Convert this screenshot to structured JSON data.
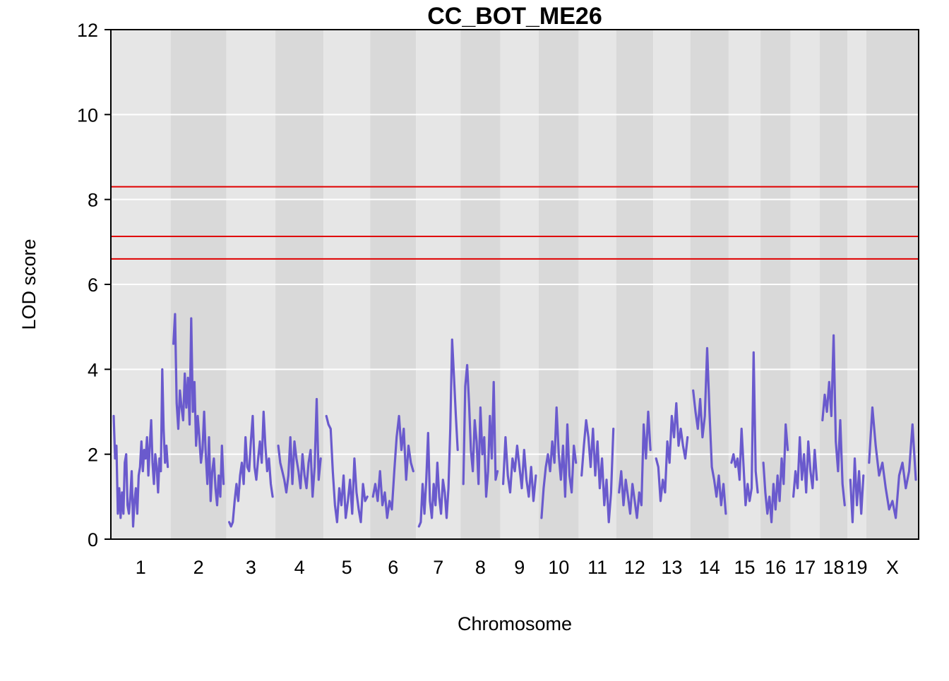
{
  "chart_data": {
    "type": "line",
    "title": "CC_BOT_ME26",
    "xlabel": "Chromosome",
    "ylabel": "LOD score",
    "ylim": [
      0,
      12
    ],
    "yticks": [
      0,
      2,
      4,
      6,
      8,
      10,
      12
    ],
    "grid": true,
    "chromosomes": [
      {
        "label": "1",
        "length": 195
      },
      {
        "label": "2",
        "length": 182
      },
      {
        "label": "3",
        "length": 160
      },
      {
        "label": "4",
        "length": 157
      },
      {
        "label": "5",
        "length": 152
      },
      {
        "label": "6",
        "length": 150
      },
      {
        "label": "7",
        "length": 145
      },
      {
        "label": "8",
        "length": 130
      },
      {
        "label": "9",
        "length": 125
      },
      {
        "label": "10",
        "length": 131
      },
      {
        "label": "11",
        "length": 122
      },
      {
        "label": "12",
        "length": 121
      },
      {
        "label": "13",
        "length": 121
      },
      {
        "label": "14",
        "length": 125
      },
      {
        "label": "15",
        "length": 104
      },
      {
        "label": "16",
        "length": 98
      },
      {
        "label": "17",
        "length": 95
      },
      {
        "label": "18",
        "length": 91
      },
      {
        "label": "19",
        "length": 61
      },
      {
        "label": "X",
        "length": 171
      }
    ],
    "thresholds": [
      8.3,
      7.13,
      6.6
    ],
    "series": [
      {
        "color": "#6a5acd",
        "profiles": [
          {
            "chr": "1",
            "lod": [
              2.9,
              1.9,
              2.2,
              0.6,
              1.2,
              0.5,
              1.1,
              0.6,
              1.8,
              2.0,
              0.8,
              0.6,
              1.0,
              1.6,
              0.3,
              0.9,
              1.2,
              0.6,
              1.5,
              1.7,
              2.3,
              1.6,
              2.1,
              1.9,
              2.4,
              1.5,
              2.2,
              2.8,
              1.8,
              1.3,
              2.0,
              1.7,
              1.1,
              1.9,
              1.6,
              4.0,
              2.6,
              1.8,
              2.2,
              1.7
            ]
          },
          {
            "chr": "2",
            "lod": [
              4.6,
              5.3,
              3.2,
              2.6,
              3.5,
              3.1,
              2.8,
              3.9,
              3.1,
              3.8,
              2.7,
              5.2,
              3.0,
              3.7,
              2.2,
              2.9,
              2.4,
              1.8,
              2.1,
              3.0,
              2.0,
              1.3,
              2.4,
              0.9,
              1.6,
              1.9,
              1.2,
              0.8,
              1.5,
              1.0,
              2.2,
              1.3
            ]
          },
          {
            "chr": "3",
            "lod": [
              0.4,
              0.3,
              0.4,
              0.9,
              1.3,
              0.9,
              1.5,
              1.8,
              1.3,
              2.4,
              1.7,
              1.6,
              2.3,
              2.9,
              1.7,
              1.4,
              1.9,
              2.3,
              1.8,
              3.0,
              2.2,
              1.6,
              1.9,
              1.3,
              1.0
            ]
          },
          {
            "chr": "4",
            "lod": [
              2.2,
              1.8,
              1.6,
              1.4,
              1.1,
              1.5,
              2.4,
              1.3,
              2.3,
              1.9,
              1.6,
              1.2,
              2.0,
              1.5,
              1.2,
              1.8,
              2.1,
              1.0,
              1.7,
              3.3,
              1.4,
              1.9
            ]
          },
          {
            "chr": "5",
            "lod": [
              2.9,
              2.7,
              2.6,
              1.6,
              0.8,
              0.4,
              1.2,
              0.8,
              1.5,
              0.5,
              0.9,
              1.4,
              0.6,
              1.9,
              1.1,
              0.7,
              0.4,
              1.3,
              0.9,
              1.0
            ]
          },
          {
            "chr": "6",
            "lod": [
              1.0,
              1.3,
              0.9,
              1.6,
              0.8,
              1.1,
              0.5,
              0.9,
              0.7,
              1.6,
              2.4,
              2.9,
              2.1,
              2.6,
              1.4,
              2.2,
              1.8,
              1.6
            ]
          },
          {
            "chr": "7",
            "lod": [
              0.3,
              0.4,
              1.3,
              0.6,
              1.4,
              2.5,
              0.9,
              0.5,
              1.3,
              0.8,
              1.8,
              1.0,
              0.6,
              1.4,
              1.1,
              0.5,
              1.2,
              2.6,
              4.7,
              3.8,
              2.9,
              2.1
            ]
          },
          {
            "chr": "8",
            "lod": [
              1.3,
              3.6,
              4.1,
              3.2,
              2.1,
              1.6,
              2.8,
              2.3,
              1.3,
              3.1,
              2.0,
              2.4,
              1.0,
              1.6,
              2.9,
              1.9,
              3.7,
              1.4,
              1.6
            ]
          },
          {
            "chr": "9",
            "lod": [
              1.3,
              2.4,
              1.5,
              1.1,
              1.9,
              1.6,
              2.2,
              1.7,
              1.2,
              2.1,
              1.4,
              1.0,
              1.7,
              0.9,
              1.5
            ]
          },
          {
            "chr": "10",
            "lod": [
              0.5,
              1.2,
              1.7,
              2.0,
              1.6,
              2.3,
              1.8,
              3.1,
              2.0,
              1.4,
              2.2,
              1.0,
              2.7,
              1.5,
              1.1,
              2.2,
              1.8
            ]
          },
          {
            "chr": "11",
            "lod": [
              1.5,
              2.2,
              2.8,
              2.4,
              1.7,
              2.6,
              1.5,
              2.3,
              1.2,
              1.9,
              0.8,
              1.4,
              0.4,
              1.1,
              2.6
            ]
          },
          {
            "chr": "12",
            "lod": [
              1.1,
              1.6,
              0.8,
              1.4,
              1.0,
              0.6,
              1.3,
              0.9,
              0.5,
              1.1,
              0.8,
              2.7,
              1.9,
              3.0,
              2.1
            ]
          },
          {
            "chr": "13",
            "lod": [
              1.9,
              1.7,
              0.9,
              1.4,
              1.1,
              2.3,
              1.8,
              2.9,
              2.4,
              3.2,
              2.2,
              2.6,
              2.2,
              1.9,
              2.4
            ]
          },
          {
            "chr": "14",
            "lod": [
              3.5,
              3.0,
              2.6,
              3.3,
              2.4,
              2.9,
              4.5,
              3.0,
              1.7,
              1.4,
              1.0,
              1.5,
              0.8,
              1.3,
              0.6
            ]
          },
          {
            "chr": "15",
            "lod": [
              1.8,
              2.0,
              1.7,
              1.9,
              1.4,
              2.6,
              1.7,
              0.8,
              1.3,
              0.9,
              1.2,
              4.4,
              1.6,
              1.1
            ]
          },
          {
            "chr": "16",
            "lod": [
              1.8,
              1.1,
              0.6,
              1.0,
              0.4,
              1.3,
              0.7,
              1.5,
              0.9,
              1.9,
              1.3,
              2.7,
              2.1
            ]
          },
          {
            "chr": "17",
            "lod": [
              1.0,
              1.6,
              1.2,
              2.4,
              1.4,
              2.0,
              1.1,
              2.3,
              1.6,
              1.2,
              2.1,
              1.4
            ]
          },
          {
            "chr": "18",
            "lod": [
              2.8,
              3.4,
              3.0,
              3.7,
              2.9,
              4.8,
              2.3,
              1.6,
              2.8,
              1.3,
              0.8
            ]
          },
          {
            "chr": "19",
            "lod": [
              1.4,
              0.4,
              1.9,
              0.8,
              1.6,
              0.6,
              1.5
            ]
          },
          {
            "chr": "X",
            "lod": [
              1.8,
              3.1,
              2.2,
              1.5,
              1.8,
              1.2,
              0.7,
              0.9,
              0.5,
              1.5,
              1.8,
              1.2,
              1.6,
              2.7,
              1.4
            ]
          }
        ]
      }
    ]
  }
}
